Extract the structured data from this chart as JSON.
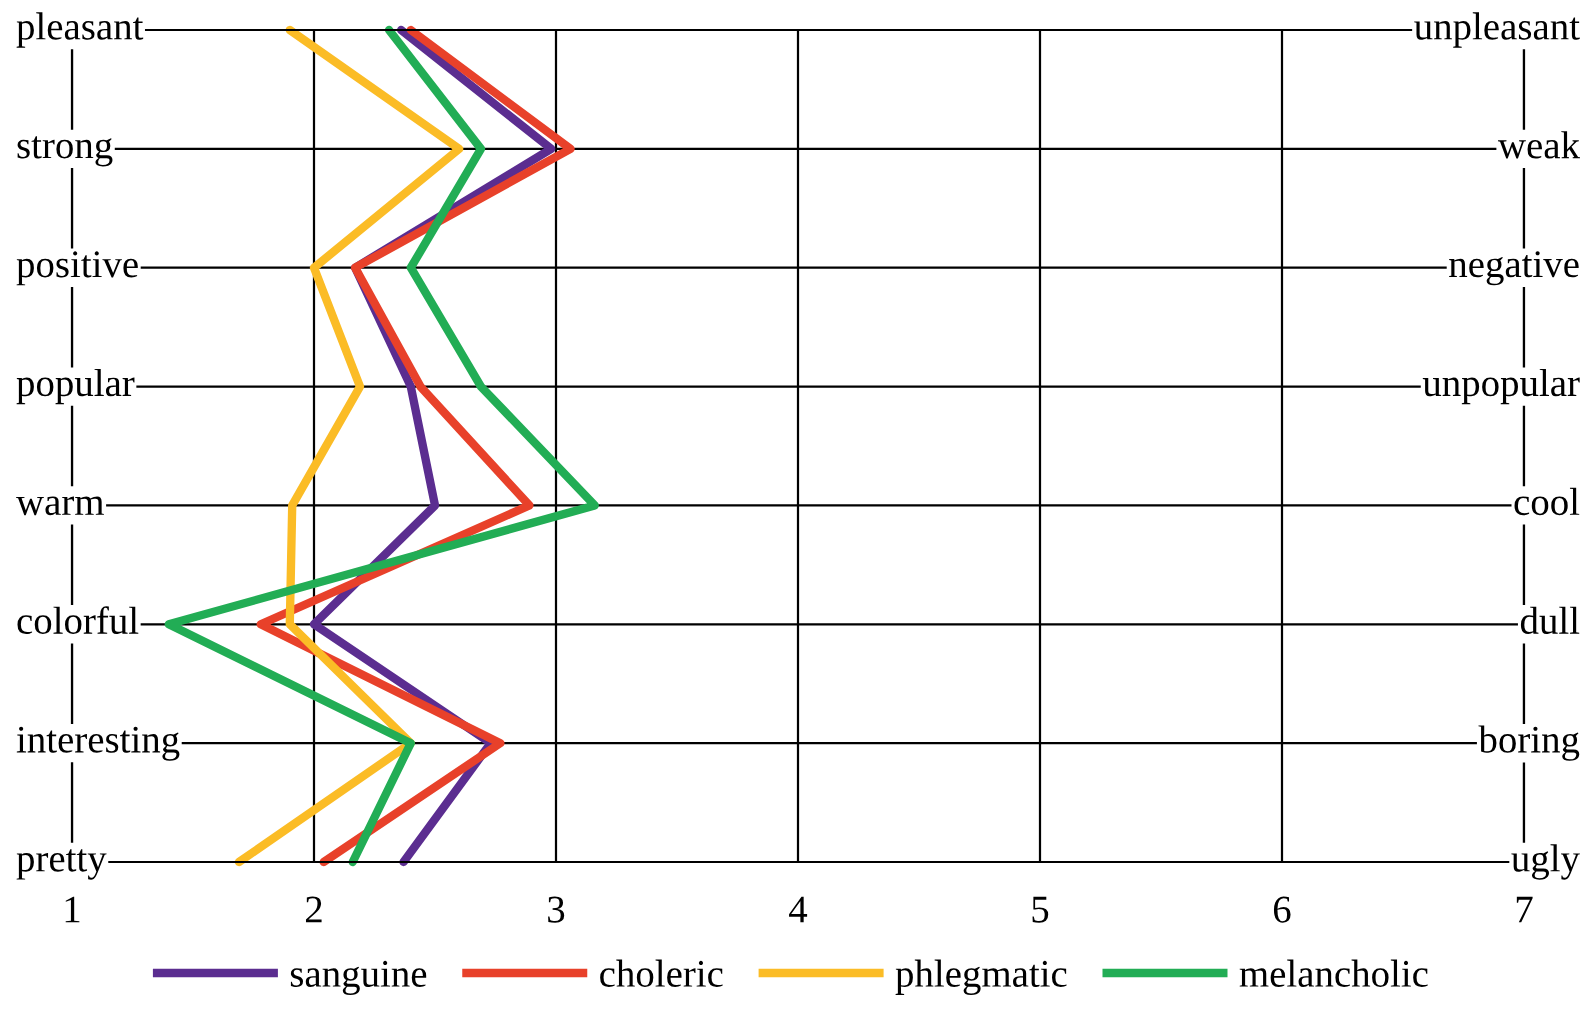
{
  "chart_data": {
    "type": "line",
    "orientation": "horizontal",
    "categories": [
      "pleasant",
      "strong",
      "positive",
      "popular",
      "warm",
      "colorful",
      "interesting",
      "pretty"
    ],
    "y2_categories": [
      "unpleasant",
      "weak",
      "negative",
      "unpopular",
      "cool",
      "dull",
      "boring",
      "ugly"
    ],
    "series": [
      {
        "name": "sanguine",
        "color": "#5b2d90",
        "values": [
          2.36,
          2.98,
          2.17,
          2.4,
          2.5,
          2.0,
          2.73,
          2.37
        ]
      },
      {
        "name": "choleric",
        "color": "#e8412a",
        "values": [
          2.4,
          3.06,
          2.17,
          2.44,
          2.89,
          1.78,
          2.77,
          2.04
        ]
      },
      {
        "name": "phlegmatic",
        "color": "#fbbc26",
        "values": [
          1.9,
          2.6,
          2.0,
          2.19,
          1.91,
          1.9,
          2.4,
          1.69
        ]
      },
      {
        "name": "melancholic",
        "color": "#22ad55",
        "values": [
          2.31,
          2.69,
          2.4,
          2.69,
          3.16,
          1.4,
          2.4,
          2.16
        ]
      }
    ],
    "xlim": [
      1,
      7
    ],
    "xticks": [
      1,
      2,
      3,
      4,
      5,
      6,
      7
    ],
    "grid": true,
    "legend": "bottom",
    "marker": "none",
    "line_style": "solid"
  }
}
